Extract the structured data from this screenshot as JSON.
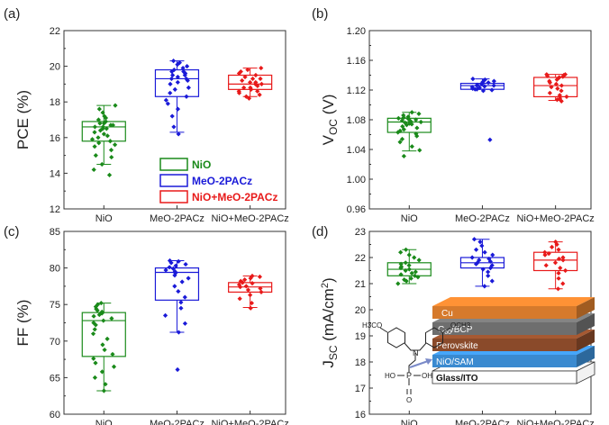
{
  "categories": [
    "NiO",
    "MeO-2PACz",
    "NiO+MeO-2PACz"
  ],
  "colors": {
    "NiO": "#1a8a1a",
    "MeO-2PACz": "#1a1ad8",
    "NiO+MeO-2PACz": "#e81a1a"
  },
  "legend": [
    {
      "label": "NiO",
      "color": "#1a8a1a"
    },
    {
      "label": "MeO-2PACz",
      "color": "#1a1ad8"
    },
    {
      "label": "NiO+MeO-2PACz",
      "color": "#e81a1a"
    }
  ],
  "schematic": {
    "layers": [
      {
        "label": "Cu",
        "color": "#d67a2c"
      },
      {
        "label": "C60/BCP",
        "color": "#6e6e6e"
      },
      {
        "label": "Perovskite",
        "color": "#8a4a2a"
      },
      {
        "label": "NiO/SAM",
        "color": "#3a8ad0"
      },
      {
        "label": "Glass/ITO",
        "color": "#ffffff"
      }
    ],
    "molecule_labels": {
      "ome_left": "H3CO",
      "ome_right": "OCH3",
      "n": "N",
      "p": "P",
      "o_double": "O",
      "ho": "HO",
      "oh": "OH",
      "o_mid": "O"
    }
  },
  "chart_data": [
    {
      "panel": "(a)",
      "type": "box",
      "ylabel_main": "PCE",
      "ylabel_unit": " (%)",
      "ylim": [
        12,
        22
      ],
      "yticks": [
        12,
        14,
        16,
        18,
        20,
        22
      ],
      "tick_decimals": 0,
      "boxes": [
        {
          "category": "NiO",
          "min": 14.5,
          "q1": 15.8,
          "median": 16.6,
          "q3": 16.9,
          "max": 17.8,
          "points": [
            13.9,
            14.2,
            14.5,
            14.9,
            15.0,
            15.3,
            15.5,
            15.6,
            15.7,
            15.8,
            15.9,
            16.0,
            16.1,
            16.2,
            16.3,
            16.4,
            16.5,
            16.5,
            16.6,
            16.6,
            16.7,
            16.7,
            16.8,
            16.8,
            16.9,
            17.0,
            17.1,
            17.2,
            17.4,
            17.6,
            17.8
          ]
        },
        {
          "category": "MeO-2PACz",
          "min": 16.3,
          "q1": 18.3,
          "median": 19.3,
          "q3": 19.8,
          "max": 20.3,
          "points": [
            16.2,
            16.6,
            17.2,
            17.6,
            17.9,
            18.1,
            18.3,
            18.5,
            18.7,
            18.8,
            19.0,
            19.1,
            19.2,
            19.3,
            19.3,
            19.4,
            19.5,
            19.5,
            19.6,
            19.7,
            19.7,
            19.8,
            19.9,
            20.0,
            20.1,
            20.2,
            20.3
          ]
        },
        {
          "category": "NiO+MeO-2PACz",
          "min": 18.3,
          "q1": 18.7,
          "median": 19.0,
          "q3": 19.5,
          "max": 19.9,
          "points": [
            18.2,
            18.3,
            18.4,
            18.5,
            18.6,
            18.6,
            18.7,
            18.8,
            18.8,
            18.9,
            19.0,
            19.0,
            19.1,
            19.1,
            19.2,
            19.3,
            19.3,
            19.4,
            19.5,
            19.6,
            19.7,
            19.8,
            19.9
          ]
        }
      ]
    },
    {
      "panel": "(b)",
      "type": "box",
      "ylabel_main": "V",
      "ylabel_sub": "OC",
      "ylabel_unit": " (V)",
      "ylim": [
        0.96,
        1.2
      ],
      "yticks": [
        0.96,
        1.0,
        1.04,
        1.08,
        1.12,
        1.16,
        1.2
      ],
      "tick_decimals": 2,
      "boxes": [
        {
          "category": "NiO",
          "min": 1.038,
          "q1": 1.063,
          "median": 1.077,
          "q3": 1.082,
          "max": 1.09,
          "points": [
            1.031,
            1.039,
            1.044,
            1.05,
            1.054,
            1.058,
            1.061,
            1.063,
            1.065,
            1.067,
            1.069,
            1.071,
            1.073,
            1.074,
            1.075,
            1.076,
            1.077,
            1.078,
            1.079,
            1.08,
            1.081,
            1.082,
            1.083,
            1.084,
            1.086,
            1.088,
            1.09
          ]
        },
        {
          "category": "MeO-2PACz",
          "min": 1.121,
          "q1": 1.121,
          "median": 1.126,
          "q3": 1.129,
          "max": 1.135,
          "points": [
            1.053,
            1.119,
            1.12,
            1.121,
            1.121,
            1.122,
            1.123,
            1.124,
            1.125,
            1.126,
            1.126,
            1.127,
            1.128,
            1.129,
            1.13,
            1.131,
            1.132,
            1.134,
            1.135
          ]
        },
        {
          "category": "NiO+MeO-2PACz",
          "min": 1.106,
          "q1": 1.111,
          "median": 1.126,
          "q3": 1.137,
          "max": 1.141,
          "points": [
            1.105,
            1.107,
            1.109,
            1.111,
            1.113,
            1.116,
            1.119,
            1.122,
            1.124,
            1.126,
            1.128,
            1.13,
            1.132,
            1.134,
            1.136,
            1.137,
            1.138,
            1.139,
            1.14,
            1.141,
            1.141
          ]
        }
      ]
    },
    {
      "panel": "(c)",
      "type": "box",
      "ylabel_main": "FF",
      "ylabel_unit": " (%)",
      "ylim": [
        60,
        85
      ],
      "yticks": [
        60,
        65,
        70,
        75,
        80,
        85
      ],
      "tick_decimals": 0,
      "boxes": [
        {
          "category": "NiO",
          "min": 63.2,
          "q1": 67.9,
          "median": 72.8,
          "q3": 73.9,
          "max": 75.2,
          "points": [
            63.2,
            64.1,
            65.0,
            65.8,
            66.5,
            67.0,
            67.6,
            68.2,
            68.8,
            69.5,
            70.3,
            71.0,
            71.6,
            72.2,
            72.5,
            72.8,
            73.1,
            73.4,
            73.6,
            73.8,
            74.0,
            74.2,
            74.4,
            74.7,
            75.0,
            75.2
          ]
        },
        {
          "category": "MeO-2PACz",
          "min": 71.2,
          "q1": 75.6,
          "median": 79.4,
          "q3": 80.0,
          "max": 81.0,
          "points": [
            66.1,
            71.2,
            72.4,
            73.5,
            74.5,
            75.3,
            76.0,
            76.8,
            77.5,
            78.1,
            78.6,
            79.0,
            79.3,
            79.5,
            79.7,
            79.9,
            80.1,
            80.3,
            80.5,
            80.7,
            80.9,
            81.0
          ]
        },
        {
          "category": "NiO+MeO-2PACz",
          "min": 74.6,
          "q1": 76.7,
          "median": 77.4,
          "q3": 78.0,
          "max": 78.9,
          "points": [
            74.5,
            75.2,
            75.8,
            76.3,
            76.7,
            77.0,
            77.2,
            77.4,
            77.5,
            77.7,
            77.9,
            78.0,
            78.2,
            78.4,
            78.6,
            78.8,
            78.9
          ]
        }
      ]
    },
    {
      "panel": "(d)",
      "type": "box",
      "ylabel_main": "J",
      "ylabel_sub": "SC",
      "ylabel_unit": " (mA/cm",
      "ylabel_sup": "2",
      "ylabel_end": ")",
      "ylim": [
        16,
        23
      ],
      "yticks": [
        16,
        17,
        18,
        19,
        20,
        21,
        22,
        23
      ],
      "tick_decimals": 0,
      "boxes": [
        {
          "category": "NiO",
          "min": 21.0,
          "q1": 21.3,
          "median": 21.55,
          "q3": 21.8,
          "max": 22.3,
          "points": [
            21.0,
            21.1,
            21.15,
            21.2,
            21.25,
            21.3,
            21.35,
            21.4,
            21.45,
            21.5,
            21.55,
            21.6,
            21.65,
            21.7,
            21.75,
            21.8,
            21.9,
            22.0,
            22.1,
            22.2,
            22.3
          ]
        },
        {
          "category": "MeO-2PACz",
          "min": 20.9,
          "q1": 21.6,
          "median": 21.8,
          "q3": 22.0,
          "max": 22.7,
          "points": [
            20.9,
            21.1,
            21.3,
            21.45,
            21.55,
            21.6,
            21.7,
            21.75,
            21.8,
            21.85,
            21.9,
            21.95,
            22.0,
            22.1,
            22.2,
            22.3,
            22.45,
            22.6,
            22.7
          ]
        },
        {
          "category": "NiO+MeO-2PACz",
          "min": 20.8,
          "q1": 21.5,
          "median": 21.9,
          "q3": 22.2,
          "max": 22.6,
          "points": [
            20.8,
            21.0,
            21.2,
            21.4,
            21.5,
            21.6,
            21.7,
            21.8,
            21.9,
            21.95,
            22.0,
            22.1,
            22.15,
            22.2,
            22.3,
            22.4,
            22.5,
            22.6
          ]
        }
      ]
    }
  ]
}
